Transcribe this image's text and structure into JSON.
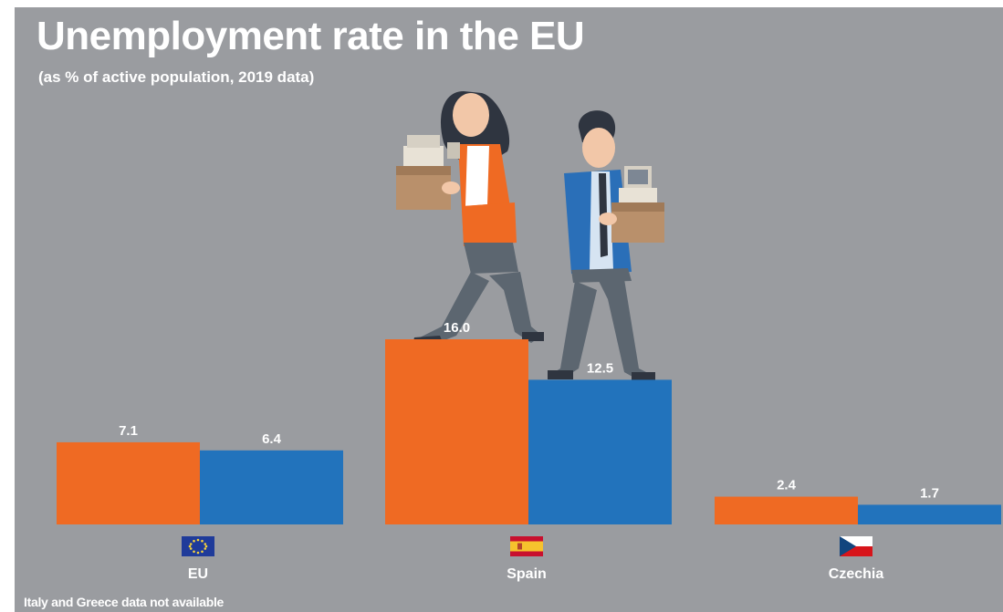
{
  "title": "Unemployment rate in the EU",
  "subtitle": "(as % of active population, 2019 data)",
  "footnote": "Italy and Greece data not available",
  "colors": {
    "background": "#9a9ca0",
    "series_a": "#ef6a23",
    "series_b": "#2273bc"
  },
  "chart_data": {
    "type": "bar",
    "categories": [
      "EU",
      "Spain",
      "Czechia"
    ],
    "series": [
      {
        "color": "#ef6a23",
        "values": [
          7.1,
          16.0,
          2.4
        ],
        "labels": [
          "7.1",
          "16.0",
          "2.4"
        ]
      },
      {
        "color": "#2273bc",
        "values": [
          6.4,
          12.5,
          1.7
        ],
        "labels": [
          "6.4",
          "12.5",
          "1.7"
        ]
      }
    ],
    "ylim": [
      0,
      16
    ],
    "grid": false,
    "legend": "none",
    "category_icons": [
      "eu-flag-icon",
      "spain-flag-icon",
      "czechia-flag-icon"
    ]
  }
}
